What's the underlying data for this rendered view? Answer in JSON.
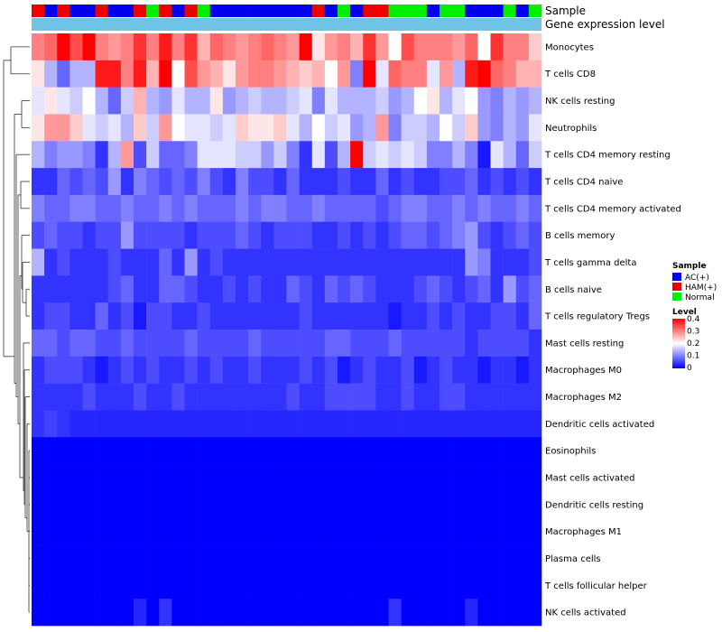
{
  "chart_data": {
    "type": "heatmap",
    "title": "",
    "annotation_labels": {
      "sample": "Sample",
      "expression": "Gene expression level"
    },
    "sample_groups": [
      "AC(+)",
      "HAM(+)",
      "Normal"
    ],
    "sample_group_colors": {
      "AC(+)": "#0000ee",
      "HAM(+)": "#ee0000",
      "Normal": "#00ee00"
    },
    "sample_annotation": [
      "HAM(+)",
      "AC(+)",
      "HAM(+)",
      "AC(+)",
      "AC(+)",
      "HAM(+)",
      "AC(+)",
      "AC(+)",
      "HAM(+)",
      "Normal",
      "HAM(+)",
      "AC(+)",
      "HAM(+)",
      "Normal",
      "AC(+)",
      "AC(+)",
      "AC(+)",
      "AC(+)",
      "AC(+)",
      "AC(+)",
      "AC(+)",
      "AC(+)",
      "HAM(+)",
      "AC(+)",
      "Normal",
      "AC(+)",
      "HAM(+)",
      "HAM(+)",
      "Normal",
      "Normal",
      "Normal",
      "AC(+)",
      "Normal",
      "Normal",
      "AC(+)",
      "AC(+)",
      "AC(+)",
      "Normal",
      "AC(+)",
      "Normal"
    ],
    "expression_bar_color": "#6ec3e6",
    "rows": [
      "Monocytes",
      "T cells CD8",
      "NK cells resting",
      "Neutrophils",
      "T cells CD4 memory resting",
      "T cells CD4 naive",
      "T cells CD4 memory activated",
      "B cells memory",
      "T cells gamma delta",
      "B cells naive",
      "T cells regulatory  Tregs",
      "Mast cells resting",
      "Macrophages M0",
      "Macrophages M2",
      "Dendritic cells activated",
      "Eosinophils",
      "Mast cells activated",
      "Dendritic cells resting",
      "Macrophages M1",
      "Plasma cells",
      "T cells follicular helper",
      "NK cells activated"
    ],
    "values": [
      [
        0.3,
        0.32,
        0.4,
        0.34,
        0.4,
        0.3,
        0.28,
        0.3,
        0.36,
        0.3,
        0.38,
        0.3,
        0.36,
        0.26,
        0.32,
        0.3,
        0.28,
        0.3,
        0.32,
        0.3,
        0.28,
        0.4,
        0.22,
        0.28,
        0.3,
        0.26,
        0.36,
        0.28,
        0.2,
        0.34,
        0.3,
        0.3,
        0.3,
        0.28,
        0.32,
        0.2,
        0.36,
        0.3,
        0.3,
        0.24
      ],
      [
        0.22,
        0.14,
        0.08,
        0.14,
        0.14,
        0.38,
        0.38,
        0.3,
        0.38,
        0.26,
        0.4,
        0.2,
        0.34,
        0.28,
        0.26,
        0.22,
        0.28,
        0.3,
        0.3,
        0.28,
        0.26,
        0.24,
        0.26,
        0.2,
        0.28,
        0.1,
        0.4,
        0.18,
        0.32,
        0.3,
        0.3,
        0.18,
        0.28,
        0.14,
        0.38,
        0.4,
        0.32,
        0.3,
        0.26,
        0.26
      ],
      [
        0.18,
        0.22,
        0.18,
        0.16,
        0.2,
        0.14,
        0.08,
        0.16,
        0.26,
        0.14,
        0.12,
        0.18,
        0.14,
        0.14,
        0.22,
        0.12,
        0.14,
        0.16,
        0.14,
        0.14,
        0.16,
        0.18,
        0.1,
        0.18,
        0.14,
        0.14,
        0.14,
        0.16,
        0.12,
        0.14,
        0.2,
        0.22,
        0.14,
        0.18,
        0.2,
        0.12,
        0.1,
        0.14,
        0.12,
        0.14
      ],
      [
        0.22,
        0.28,
        0.28,
        0.24,
        0.18,
        0.16,
        0.18,
        0.14,
        0.24,
        0.16,
        0.28,
        0.2,
        0.18,
        0.18,
        0.16,
        0.18,
        0.24,
        0.22,
        0.22,
        0.24,
        0.18,
        0.14,
        0.2,
        0.16,
        0.18,
        0.12,
        0.14,
        0.28,
        0.1,
        0.16,
        0.16,
        0.14,
        0.2,
        0.16,
        0.24,
        0.12,
        0.1,
        0.14,
        0.12,
        0.18
      ],
      [
        0.14,
        0.1,
        0.12,
        0.12,
        0.1,
        0.04,
        0.14,
        0.28,
        0.06,
        0.16,
        0.08,
        0.08,
        0.1,
        0.18,
        0.18,
        0.18,
        0.16,
        0.16,
        0.12,
        0.16,
        0.1,
        0.04,
        0.18,
        0.06,
        0.14,
        0.4,
        0.16,
        0.18,
        0.16,
        0.18,
        0.16,
        0.1,
        0.1,
        0.14,
        0.1,
        0.02,
        0.18,
        0.14,
        0.08,
        0.16
      ],
      [
        0.04,
        0.04,
        0.08,
        0.06,
        0.08,
        0.06,
        0.12,
        0.04,
        0.1,
        0.08,
        0.06,
        0.08,
        0.06,
        0.1,
        0.06,
        0.04,
        0.1,
        0.06,
        0.06,
        0.04,
        0.08,
        0.04,
        0.04,
        0.04,
        0.06,
        0.04,
        0.04,
        0.08,
        0.04,
        0.06,
        0.04,
        0.04,
        0.06,
        0.06,
        0.08,
        0.04,
        0.06,
        0.04,
        0.06,
        0.04
      ],
      [
        0.1,
        0.08,
        0.08,
        0.1,
        0.1,
        0.08,
        0.08,
        0.1,
        0.08,
        0.08,
        0.1,
        0.08,
        0.1,
        0.08,
        0.08,
        0.08,
        0.1,
        0.08,
        0.1,
        0.1,
        0.08,
        0.08,
        0.1,
        0.08,
        0.08,
        0.08,
        0.08,
        0.06,
        0.08,
        0.1,
        0.1,
        0.08,
        0.08,
        0.1,
        0.08,
        0.1,
        0.08,
        0.08,
        0.1,
        0.08
      ],
      [
        0.06,
        0.08,
        0.06,
        0.06,
        0.04,
        0.06,
        0.06,
        0.12,
        0.06,
        0.06,
        0.06,
        0.06,
        0.04,
        0.06,
        0.06,
        0.06,
        0.08,
        0.06,
        0.04,
        0.06,
        0.06,
        0.06,
        0.04,
        0.04,
        0.06,
        0.04,
        0.06,
        0.04,
        0.06,
        0.08,
        0.08,
        0.06,
        0.08,
        0.1,
        0.12,
        0.06,
        0.04,
        0.06,
        0.08,
        0.06
      ],
      [
        0.14,
        0.04,
        0.06,
        0.04,
        0.04,
        0.04,
        0.06,
        0.04,
        0.04,
        0.04,
        0.08,
        0.04,
        0.12,
        0.04,
        0.06,
        0.04,
        0.04,
        0.04,
        0.04,
        0.04,
        0.04,
        0.04,
        0.04,
        0.04,
        0.04,
        0.04,
        0.04,
        0.04,
        0.04,
        0.04,
        0.04,
        0.04,
        0.04,
        0.04,
        0.12,
        0.1,
        0.04,
        0.04,
        0.04,
        0.06
      ],
      [
        0.04,
        0.04,
        0.04,
        0.04,
        0.04,
        0.04,
        0.06,
        0.08,
        0.04,
        0.04,
        0.08,
        0.08,
        0.06,
        0.04,
        0.04,
        0.06,
        0.04,
        0.06,
        0.04,
        0.04,
        0.08,
        0.06,
        0.04,
        0.08,
        0.06,
        0.08,
        0.06,
        0.04,
        0.04,
        0.04,
        0.06,
        0.08,
        0.06,
        0.04,
        0.06,
        0.08,
        0.04,
        0.12,
        0.06,
        0.08
      ],
      [
        0.04,
        0.06,
        0.06,
        0.04,
        0.04,
        0.08,
        0.04,
        0.06,
        0.02,
        0.06,
        0.06,
        0.04,
        0.04,
        0.06,
        0.04,
        0.04,
        0.04,
        0.04,
        0.04,
        0.04,
        0.04,
        0.06,
        0.04,
        0.04,
        0.04,
        0.04,
        0.04,
        0.04,
        0.02,
        0.04,
        0.04,
        0.06,
        0.04,
        0.06,
        0.04,
        0.04,
        0.06,
        0.06,
        0.04,
        0.08
      ],
      [
        0.08,
        0.08,
        0.06,
        0.08,
        0.08,
        0.06,
        0.06,
        0.08,
        0.06,
        0.06,
        0.06,
        0.06,
        0.08,
        0.06,
        0.06,
        0.06,
        0.06,
        0.08,
        0.06,
        0.06,
        0.06,
        0.06,
        0.06,
        0.08,
        0.08,
        0.06,
        0.06,
        0.06,
        0.08,
        0.06,
        0.06,
        0.06,
        0.06,
        0.06,
        0.04,
        0.06,
        0.06,
        0.06,
        0.06,
        0.04
      ],
      [
        0.04,
        0.06,
        0.06,
        0.06,
        0.04,
        0.02,
        0.04,
        0.06,
        0.04,
        0.06,
        0.04,
        0.04,
        0.06,
        0.04,
        0.06,
        0.04,
        0.04,
        0.06,
        0.04,
        0.04,
        0.04,
        0.06,
        0.04,
        0.06,
        0.02,
        0.04,
        0.06,
        0.04,
        0.04,
        0.06,
        0.02,
        0.04,
        0.06,
        0.04,
        0.04,
        0.02,
        0.04,
        0.04,
        0.02,
        0.04
      ],
      [
        0.04,
        0.04,
        0.04,
        0.04,
        0.06,
        0.04,
        0.04,
        0.04,
        0.06,
        0.04,
        0.04,
        0.06,
        0.04,
        0.04,
        0.04,
        0.04,
        0.04,
        0.04,
        0.04,
        0.04,
        0.06,
        0.04,
        0.04,
        0.06,
        0.06,
        0.06,
        0.06,
        0.04,
        0.04,
        0.06,
        0.04,
        0.04,
        0.06,
        0.06,
        0.04,
        0.04,
        0.04,
        0.04,
        0.04,
        0.04
      ],
      [
        0.04,
        0.05,
        0.04,
        0.03,
        0.03,
        0.03,
        0.03,
        0.03,
        0.03,
        0.03,
        0.03,
        0.03,
        0.03,
        0.03,
        0.03,
        0.03,
        0.03,
        0.03,
        0.03,
        0.03,
        0.03,
        0.03,
        0.03,
        0.03,
        0.03,
        0.03,
        0.03,
        0.03,
        0.03,
        0.03,
        0.03,
        0.03,
        0.03,
        0.03,
        0.03,
        0.03,
        0.03,
        0.03,
        0.03,
        0.03
      ],
      [
        0,
        0,
        0,
        0,
        0,
        0,
        0,
        0,
        0,
        0,
        0,
        0,
        0,
        0,
        0,
        0,
        0,
        0,
        0,
        0,
        0,
        0,
        0,
        0,
        0,
        0,
        0,
        0,
        0,
        0,
        0,
        0,
        0,
        0,
        0,
        0,
        0,
        0,
        0,
        0
      ],
      [
        0,
        0,
        0,
        0,
        0,
        0,
        0,
        0,
        0,
        0,
        0,
        0,
        0,
        0,
        0,
        0,
        0,
        0,
        0,
        0,
        0,
        0,
        0,
        0,
        0,
        0,
        0,
        0,
        0,
        0,
        0,
        0,
        0,
        0,
        0,
        0,
        0,
        0,
        0,
        0
      ],
      [
        0,
        0,
        0,
        0,
        0,
        0,
        0,
        0,
        0,
        0,
        0,
        0,
        0,
        0,
        0,
        0,
        0,
        0,
        0,
        0,
        0,
        0,
        0,
        0,
        0,
        0,
        0,
        0,
        0,
        0,
        0,
        0,
        0,
        0,
        0,
        0,
        0,
        0,
        0,
        0
      ],
      [
        0,
        0,
        0,
        0,
        0,
        0,
        0,
        0,
        0,
        0,
        0,
        0,
        0,
        0,
        0,
        0,
        0,
        0,
        0,
        0,
        0,
        0,
        0,
        0,
        0,
        0,
        0,
        0,
        0,
        0,
        0,
        0,
        0,
        0,
        0,
        0,
        0,
        0,
        0,
        0
      ],
      [
        0,
        0,
        0,
        0,
        0,
        0,
        0,
        0,
        0,
        0,
        0,
        0,
        0,
        0,
        0,
        0,
        0,
        0,
        0,
        0,
        0,
        0,
        0,
        0,
        0,
        0,
        0,
        0,
        0,
        0,
        0,
        0,
        0,
        0,
        0,
        0,
        0,
        0,
        0,
        0
      ],
      [
        0,
        0,
        0,
        0,
        0,
        0,
        0,
        0,
        0,
        0,
        0,
        0,
        0,
        0,
        0,
        0,
        0,
        0,
        0,
        0,
        0,
        0,
        0,
        0,
        0,
        0,
        0,
        0,
        0,
        0,
        0,
        0,
        0,
        0,
        0,
        0,
        0,
        0,
        0,
        0
      ],
      [
        0,
        0,
        0,
        0,
        0,
        0,
        0,
        0,
        0.03,
        0,
        0.04,
        0,
        0,
        0,
        0,
        0,
        0,
        0,
        0,
        0,
        0,
        0,
        0,
        0,
        0,
        0,
        0,
        0,
        0.04,
        0,
        0,
        0,
        0,
        0,
        0.03,
        0,
        0,
        0,
        0,
        0
      ]
    ],
    "color_scale": {
      "low": "#0000ff",
      "mid": "#ffffff",
      "high": "#ff0000",
      "min": 0,
      "mid_value": 0.2,
      "max": 0.4
    },
    "legend": {
      "sample_title": "Sample",
      "level_title": "Level",
      "level_ticks": [
        "0.4",
        "0.3",
        "0.2",
        "0.1",
        "0"
      ],
      "position": "right"
    }
  }
}
